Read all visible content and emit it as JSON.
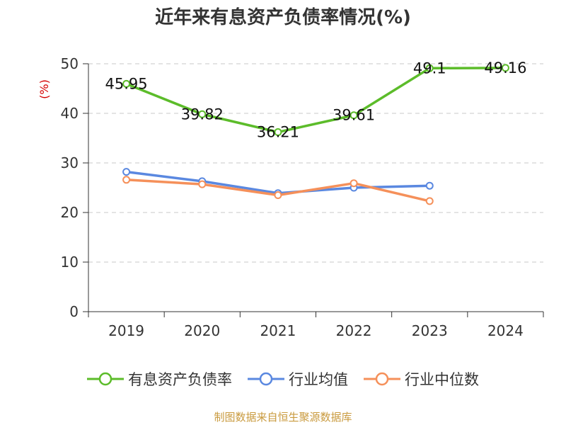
{
  "chart_data": {
    "type": "line",
    "title": "近年来有息资产负债率情况(%)",
    "ylabel": "(%)",
    "ylim": [
      0,
      50
    ],
    "yticks": [
      0,
      10,
      20,
      30,
      40,
      50
    ],
    "categories": [
      "2019",
      "2020",
      "2021",
      "2022",
      "2023",
      "2024"
    ],
    "grid": true,
    "legend_position": "bottom",
    "series": [
      {
        "name": "有息资产负债率",
        "color": "#5cbc2a",
        "values": [
          45.95,
          39.82,
          36.21,
          39.61,
          49.1,
          49.16
        ],
        "labels": [
          "45.95",
          "39.82",
          "36.21",
          "39.61",
          "49.1",
          "49.16"
        ]
      },
      {
        "name": "行业均值",
        "color": "#5a88e0",
        "values": [
          28.2,
          26.3,
          23.9,
          25.0,
          25.4,
          null
        ]
      },
      {
        "name": "行业中位数",
        "color": "#f5905a",
        "values": [
          26.6,
          25.7,
          23.5,
          25.9,
          22.3,
          null
        ]
      }
    ]
  },
  "footer": {
    "source": "制图数据来自恒生聚源数据库"
  }
}
